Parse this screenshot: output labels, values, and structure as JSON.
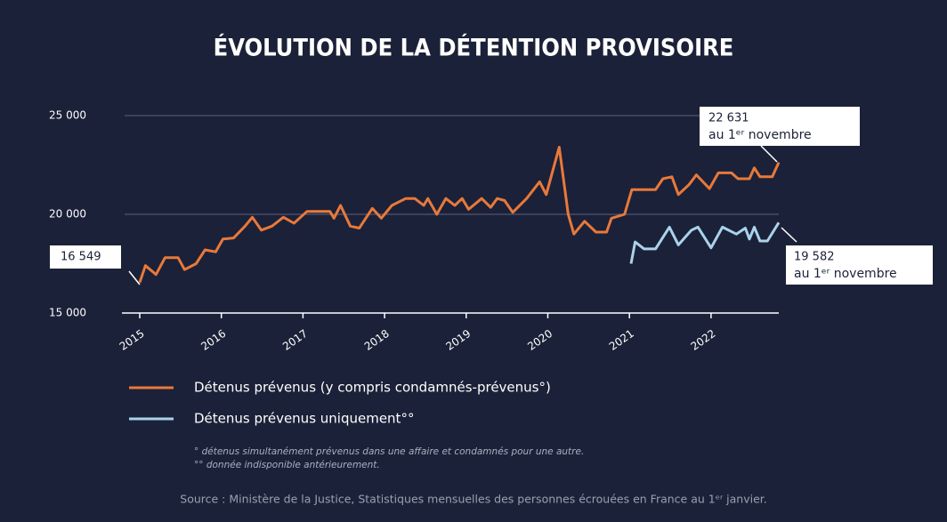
{
  "chart_data": {
    "type": "line",
    "title": "ÉVOLUTION DE LA DÉTENTION PROVISOIRE",
    "xlim": [
      2015,
      2022.83
    ],
    "xticks": [
      2015,
      2016,
      2017,
      2018,
      2019,
      2020,
      2021,
      2022
    ],
    "ylim": [
      15000,
      25000
    ],
    "yticks": [
      {
        "value": 15000,
        "label": "15 000"
      },
      {
        "value": 20000,
        "label": "20 000"
      },
      {
        "value": 25000,
        "label": "25 000"
      }
    ],
    "grid": true,
    "series": [
      {
        "name": "Détenus prévenus (y compris condamnés-prévenus°)",
        "color": "#e8793a",
        "x": [
          2015.0,
          2015.07,
          2015.2,
          2015.31,
          2015.47,
          2015.55,
          2015.69,
          2015.8,
          2015.93,
          2016.02,
          2016.15,
          2016.29,
          2016.38,
          2016.49,
          2016.62,
          2016.76,
          2016.89,
          2017.05,
          2017.33,
          2017.38,
          2017.46,
          2017.58,
          2017.69,
          2017.85,
          2017.96,
          2018.09,
          2018.26,
          2018.37,
          2018.48,
          2018.53,
          2018.64,
          2018.75,
          2018.86,
          2018.95,
          2019.03,
          2019.19,
          2019.3,
          2019.38,
          2019.47,
          2019.57,
          2019.74,
          2019.9,
          2019.98,
          2020.14,
          2020.25,
          2020.32,
          2020.45,
          2020.59,
          2020.72,
          2020.78,
          2020.94,
          2021.03,
          2021.16,
          2021.32,
          2021.41,
          2021.52,
          2021.6,
          2021.73,
          2021.82,
          2021.98,
          2022.09,
          2022.25,
          2022.33,
          2022.47,
          2022.53,
          2022.6,
          2022.75,
          2022.83
        ],
        "values": [
          16549,
          17400,
          16950,
          17800,
          17800,
          17200,
          17500,
          18200,
          18100,
          18750,
          18800,
          19400,
          19850,
          19200,
          19400,
          19850,
          19550,
          20150,
          20150,
          19800,
          20450,
          19400,
          19300,
          20300,
          19800,
          20450,
          20800,
          20800,
          20450,
          20800,
          20000,
          20800,
          20450,
          20800,
          20250,
          20800,
          20350,
          20800,
          20700,
          20100,
          20800,
          21650,
          21000,
          23400,
          20000,
          19000,
          19650,
          19100,
          19100,
          19800,
          20000,
          21250,
          21250,
          21250,
          21800,
          21900,
          21000,
          21500,
          22000,
          21300,
          22100,
          22100,
          21800,
          21800,
          22350,
          21900,
          21900,
          22631
        ]
      },
      {
        "name": "Détenus prévenus uniquement°°",
        "color": "#a9d3ea",
        "x": [
          2021.02,
          2021.07,
          2021.18,
          2021.32,
          2021.49,
          2021.6,
          2021.76,
          2021.84,
          2022.0,
          2022.14,
          2022.31,
          2022.42,
          2022.47,
          2022.53,
          2022.6,
          2022.69,
          2022.83
        ],
        "values": [
          17500,
          18600,
          18250,
          18250,
          19350,
          18450,
          19200,
          19350,
          18300,
          19350,
          19000,
          19300,
          18750,
          19350,
          18650,
          18650,
          19582
        ]
      }
    ],
    "annotations": [
      {
        "label": "16 549"
      },
      {
        "label": "22 631",
        "text": "au 1ᵉʳ novembre"
      },
      {
        "label": "19 582",
        "text": "au 1ᵉʳ novembre"
      }
    ],
    "footnotes": [
      "° détenus simultanément prévenus dans une affaire et condamnés pour une autre.",
      "°° donnée indisponible antérieurement."
    ],
    "source": "Source : Ministère de la Justice, Statistiques mensuelles des personnes écrouées en France au 1ᵉʳ janvier."
  }
}
